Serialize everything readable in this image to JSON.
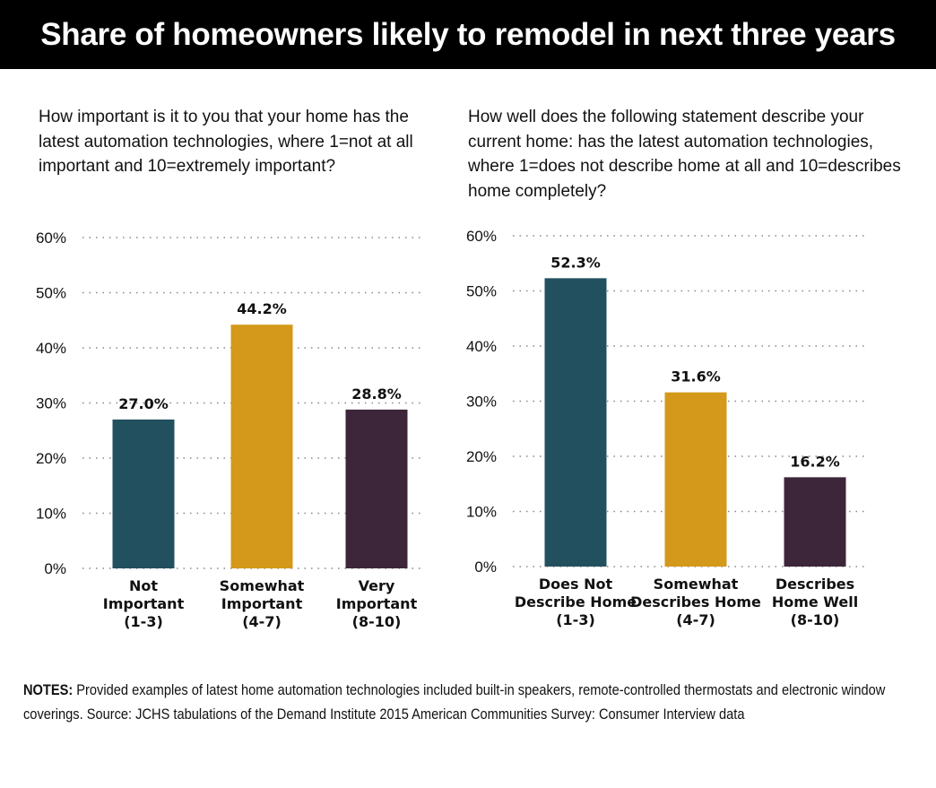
{
  "title": "Share of homeowners likely to remodel in next three years",
  "notes": {
    "label": "NOTES:",
    "text": " Provided examples of latest home automation technologies included built-in speakers, remote-controlled thermostats and electronic window coverings. Source: JCHS tabulations of the Demand Institute 2015 American Communities Survey: Consumer Interview data"
  },
  "colors": {
    "teal": "#23505e",
    "gold": "#d4991a",
    "plum": "#3d2639"
  },
  "chart_data": [
    {
      "type": "bar",
      "title": "How important is it to you that your home has the latest automation technologies, where 1=not at all important and 10=extremely important?",
      "categories": [
        [
          "Not",
          "Important",
          "(1-3)"
        ],
        [
          "Somewhat",
          "Important",
          "(4-7)"
        ],
        [
          "Very",
          "Important",
          "(8-10)"
        ]
      ],
      "values": [
        27.0,
        44.2,
        28.8
      ],
      "value_labels": [
        "27.0%",
        "44.2%",
        "28.8%"
      ],
      "bar_colors": [
        "#23505e",
        "#d4991a",
        "#3d2639"
      ],
      "ylim": [
        0,
        60
      ],
      "yticks": [
        0,
        10,
        20,
        30,
        40,
        50,
        60
      ],
      "ytick_labels": [
        "0%",
        "10%",
        "20%",
        "30%",
        "40%",
        "50%",
        "60%"
      ],
      "grid": true,
      "xlabel": "",
      "ylabel": ""
    },
    {
      "type": "bar",
      "title": "How well does the following statement describe your current home: has the latest automation technologies, where 1=does not describe home at all and 10=describes home completely?",
      "categories": [
        [
          "Does Not",
          "Describe Home",
          "(1-3)"
        ],
        [
          "Somewhat",
          "Describes Home",
          "(4-7)"
        ],
        [
          "Describes",
          "Home Well",
          "(8-10)"
        ]
      ],
      "values": [
        52.3,
        31.6,
        16.2
      ],
      "value_labels": [
        "52.3%",
        "31.6%",
        "16.2%"
      ],
      "bar_colors": [
        "#23505e",
        "#d4991a",
        "#3d2639"
      ],
      "ylim": [
        0,
        60
      ],
      "yticks": [
        0,
        10,
        20,
        30,
        40,
        50,
        60
      ],
      "ytick_labels": [
        "0%",
        "10%",
        "20%",
        "30%",
        "40%",
        "50%",
        "60%"
      ],
      "grid": true,
      "xlabel": "",
      "ylabel": ""
    }
  ]
}
